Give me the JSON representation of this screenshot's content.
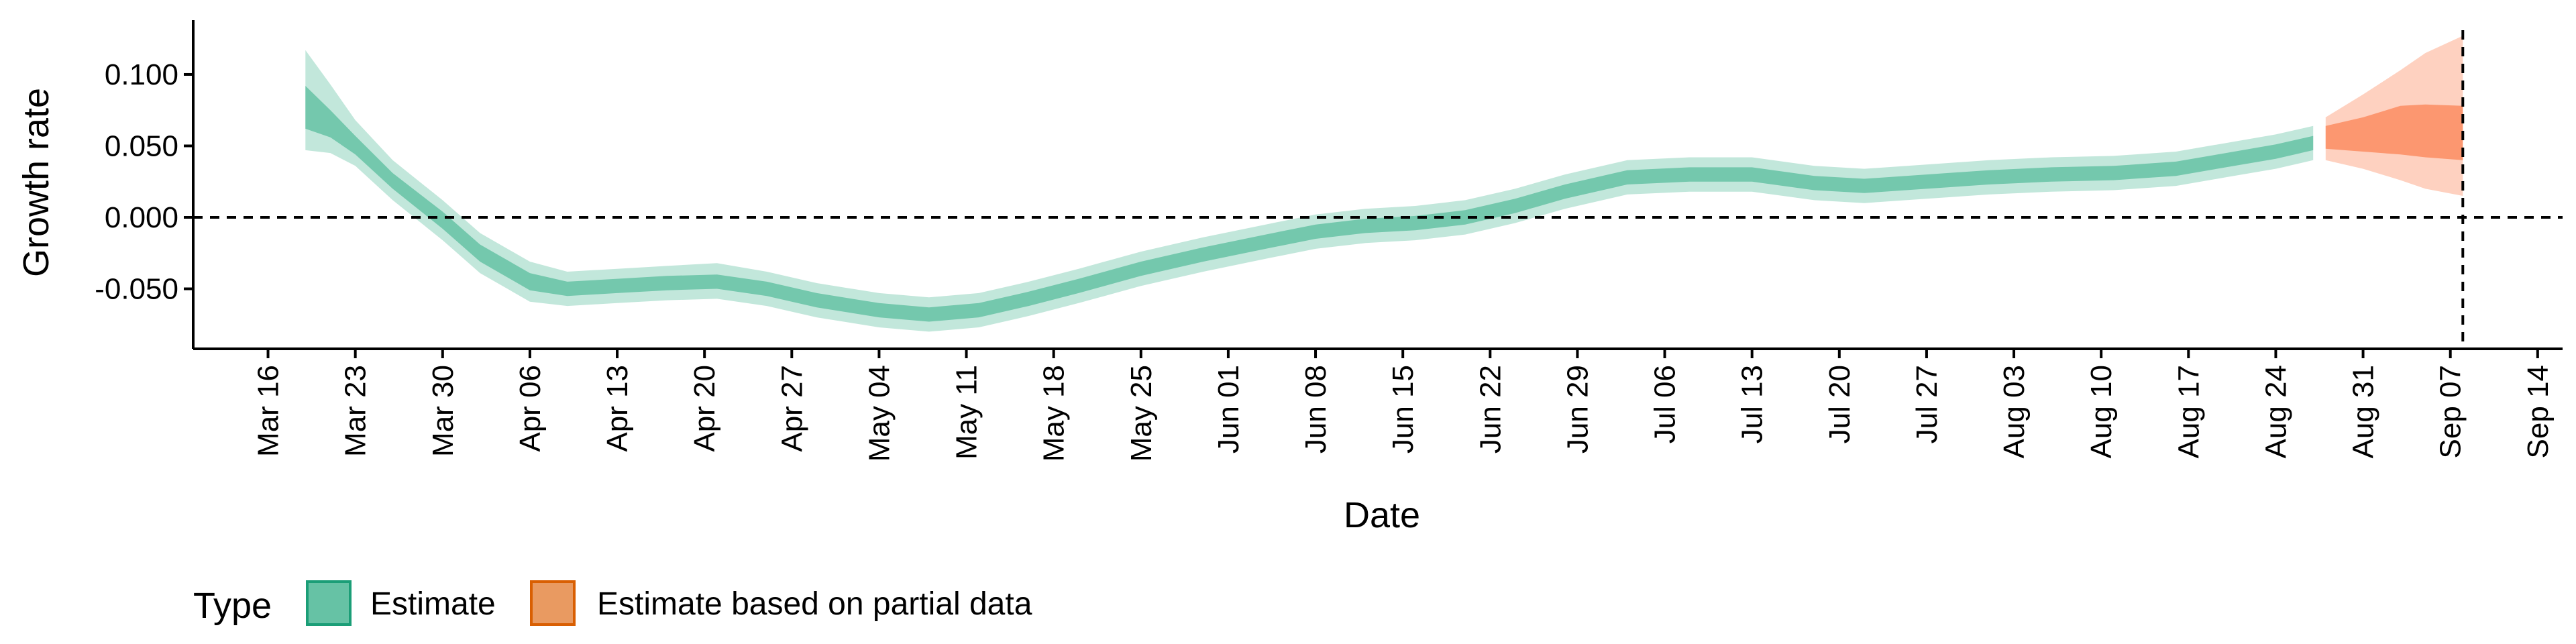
{
  "chart_data": {
    "type": "area",
    "title": "",
    "xlabel": "Date",
    "ylabel": "Growth rate",
    "x_ticks": [
      "Mar 16",
      "Mar 23",
      "Mar 30",
      "Apr 06",
      "Apr 13",
      "Apr 20",
      "Apr 27",
      "May 04",
      "May 11",
      "May 18",
      "May 25",
      "Jun 01",
      "Jun 08",
      "Jun 15",
      "Jun 22",
      "Jun 29",
      "Jul 06",
      "Jul 13",
      "Jul 20",
      "Jul 27",
      "Aug 03",
      "Aug 10",
      "Aug 17",
      "Aug 24",
      "Aug 31",
      "Sep 07",
      "Sep 14"
    ],
    "x_tick_dates": [
      "2020-03-16",
      "2020-03-23",
      "2020-03-30",
      "2020-04-06",
      "2020-04-13",
      "2020-04-20",
      "2020-04-27",
      "2020-05-04",
      "2020-05-11",
      "2020-05-18",
      "2020-05-25",
      "2020-06-01",
      "2020-06-08",
      "2020-06-15",
      "2020-06-22",
      "2020-06-29",
      "2020-07-06",
      "2020-07-13",
      "2020-07-20",
      "2020-07-27",
      "2020-08-03",
      "2020-08-10",
      "2020-08-17",
      "2020-08-24",
      "2020-08-31",
      "2020-09-07",
      "2020-09-14"
    ],
    "xlim": [
      "2020-03-10",
      "2020-09-16"
    ],
    "y_ticks": [
      "-0.050",
      "0.000",
      "0.050",
      "0.100"
    ],
    "y_tick_values": [
      -0.05,
      0.0,
      0.05,
      0.1
    ],
    "ylim": [
      -0.092,
      0.138
    ],
    "reference_lines": {
      "y": 0.0,
      "x_date": "2020-09-08",
      "style": "dashed"
    },
    "grid": false,
    "legend": {
      "title": "Type",
      "position": "bottom-left"
    },
    "series": [
      {
        "name": "Estimate",
        "color": "#66c2a5",
        "points": [
          {
            "date": "2020-03-19",
            "median": 0.075,
            "lower50": 0.062,
            "upper50": 0.092,
            "lower90": 0.047,
            "upper90": 0.117
          },
          {
            "date": "2020-03-21",
            "median": 0.065,
            "lower50": 0.056,
            "upper50": 0.075,
            "lower90": 0.045,
            "upper90": 0.093
          },
          {
            "date": "2020-03-23",
            "median": 0.05,
            "lower50": 0.044,
            "upper50": 0.057,
            "lower90": 0.036,
            "upper90": 0.068
          },
          {
            "date": "2020-03-26",
            "median": 0.025,
            "lower50": 0.02,
            "upper50": 0.031,
            "lower90": 0.012,
            "upper90": 0.04
          },
          {
            "date": "2020-03-30",
            "median": -0.002,
            "lower50": -0.008,
            "upper50": 0.004,
            "lower90": -0.016,
            "upper90": 0.012
          },
          {
            "date": "2020-04-02",
            "median": -0.025,
            "lower50": -0.031,
            "upper50": -0.019,
            "lower90": -0.039,
            "upper90": -0.011
          },
          {
            "date": "2020-04-06",
            "median": -0.045,
            "lower50": -0.051,
            "upper50": -0.039,
            "lower90": -0.059,
            "upper90": -0.031
          },
          {
            "date": "2020-04-09",
            "median": -0.05,
            "lower50": -0.055,
            "upper50": -0.045,
            "lower90": -0.062,
            "upper90": -0.038
          },
          {
            "date": "2020-04-13",
            "median": -0.048,
            "lower50": -0.053,
            "upper50": -0.043,
            "lower90": -0.06,
            "upper90": -0.036
          },
          {
            "date": "2020-04-17",
            "median": -0.046,
            "lower50": -0.051,
            "upper50": -0.041,
            "lower90": -0.058,
            "upper90": -0.034
          },
          {
            "date": "2020-04-21",
            "median": -0.045,
            "lower50": -0.05,
            "upper50": -0.04,
            "lower90": -0.057,
            "upper90": -0.032
          },
          {
            "date": "2020-04-25",
            "median": -0.05,
            "lower50": -0.055,
            "upper50": -0.045,
            "lower90": -0.062,
            "upper90": -0.038
          },
          {
            "date": "2020-04-29",
            "median": -0.058,
            "lower50": -0.063,
            "upper50": -0.053,
            "lower90": -0.07,
            "upper90": -0.046
          },
          {
            "date": "2020-05-04",
            "median": -0.065,
            "lower50": -0.07,
            "upper50": -0.06,
            "lower90": -0.077,
            "upper90": -0.053
          },
          {
            "date": "2020-05-08",
            "median": -0.068,
            "lower50": -0.073,
            "upper50": -0.063,
            "lower90": -0.08,
            "upper90": -0.056
          },
          {
            "date": "2020-05-12",
            "median": -0.065,
            "lower50": -0.07,
            "upper50": -0.06,
            "lower90": -0.077,
            "upper90": -0.053
          },
          {
            "date": "2020-05-16",
            "median": -0.057,
            "lower50": -0.062,
            "upper50": -0.052,
            "lower90": -0.069,
            "upper90": -0.045
          },
          {
            "date": "2020-05-20",
            "median": -0.048,
            "lower50": -0.053,
            "upper50": -0.043,
            "lower90": -0.06,
            "upper90": -0.036
          },
          {
            "date": "2020-05-25",
            "median": -0.036,
            "lower50": -0.041,
            "upper50": -0.031,
            "lower90": -0.048,
            "upper90": -0.024
          },
          {
            "date": "2020-05-30",
            "median": -0.026,
            "lower50": -0.031,
            "upper50": -0.021,
            "lower90": -0.038,
            "upper90": -0.014
          },
          {
            "date": "2020-06-04",
            "median": -0.017,
            "lower50": -0.022,
            "upper50": -0.012,
            "lower90": -0.029,
            "upper90": -0.005
          },
          {
            "date": "2020-06-08",
            "median": -0.01,
            "lower50": -0.015,
            "upper50": -0.005,
            "lower90": -0.022,
            "upper90": 0.002
          },
          {
            "date": "2020-06-12",
            "median": -0.006,
            "lower50": -0.011,
            "upper50": -0.001,
            "lower90": -0.018,
            "upper90": 0.006
          },
          {
            "date": "2020-06-16",
            "median": -0.004,
            "lower50": -0.009,
            "upper50": 0.001,
            "lower90": -0.016,
            "upper90": 0.008
          },
          {
            "date": "2020-06-20",
            "median": 0.0,
            "lower50": -0.005,
            "upper50": 0.005,
            "lower90": -0.012,
            "upper90": 0.012
          },
          {
            "date": "2020-06-24",
            "median": 0.008,
            "lower50": 0.003,
            "upper50": 0.013,
            "lower90": -0.004,
            "upper90": 0.02
          },
          {
            "date": "2020-06-28",
            "median": 0.018,
            "lower50": 0.013,
            "upper50": 0.023,
            "lower90": 0.006,
            "upper90": 0.03
          },
          {
            "date": "2020-07-03",
            "median": 0.028,
            "lower50": 0.023,
            "upper50": 0.033,
            "lower90": 0.016,
            "upper90": 0.04
          },
          {
            "date": "2020-07-08",
            "median": 0.03,
            "lower50": 0.025,
            "upper50": 0.035,
            "lower90": 0.018,
            "upper90": 0.042
          },
          {
            "date": "2020-07-13",
            "median": 0.03,
            "lower50": 0.025,
            "upper50": 0.035,
            "lower90": 0.018,
            "upper90": 0.042
          },
          {
            "date": "2020-07-18",
            "median": 0.024,
            "lower50": 0.019,
            "upper50": 0.029,
            "lower90": 0.012,
            "upper90": 0.036
          },
          {
            "date": "2020-07-22",
            "median": 0.022,
            "lower50": 0.017,
            "upper50": 0.027,
            "lower90": 0.01,
            "upper90": 0.034
          },
          {
            "date": "2020-07-27",
            "median": 0.025,
            "lower50": 0.02,
            "upper50": 0.03,
            "lower90": 0.013,
            "upper90": 0.037
          },
          {
            "date": "2020-08-01",
            "median": 0.028,
            "lower50": 0.023,
            "upper50": 0.033,
            "lower90": 0.016,
            "upper90": 0.04
          },
          {
            "date": "2020-08-06",
            "median": 0.03,
            "lower50": 0.025,
            "upper50": 0.035,
            "lower90": 0.018,
            "upper90": 0.042
          },
          {
            "date": "2020-08-11",
            "median": 0.031,
            "lower50": 0.026,
            "upper50": 0.036,
            "lower90": 0.019,
            "upper90": 0.043
          },
          {
            "date": "2020-08-16",
            "median": 0.034,
            "lower50": 0.029,
            "upper50": 0.039,
            "lower90": 0.022,
            "upper90": 0.046
          },
          {
            "date": "2020-08-20",
            "median": 0.04,
            "lower50": 0.035,
            "upper50": 0.045,
            "lower90": 0.028,
            "upper90": 0.052
          },
          {
            "date": "2020-08-24",
            "median": 0.046,
            "lower50": 0.041,
            "upper50": 0.051,
            "lower90": 0.034,
            "upper90": 0.058
          },
          {
            "date": "2020-08-27",
            "median": 0.052,
            "lower50": 0.047,
            "upper50": 0.057,
            "lower90": 0.04,
            "upper90": 0.064
          }
        ]
      },
      {
        "name": "Estimate based on partial data",
        "color": "#fc8d62",
        "points": [
          {
            "date": "2020-08-28",
            "median": 0.056,
            "lower50": 0.048,
            "upper50": 0.064,
            "lower90": 0.04,
            "upper90": 0.07
          },
          {
            "date": "2020-08-31",
            "median": 0.06,
            "lower50": 0.046,
            "upper50": 0.07,
            "lower90": 0.034,
            "upper90": 0.086
          },
          {
            "date": "2020-09-03",
            "median": 0.062,
            "lower50": 0.044,
            "upper50": 0.078,
            "lower90": 0.026,
            "upper90": 0.103
          },
          {
            "date": "2020-09-05",
            "median": 0.061,
            "lower50": 0.042,
            "upper50": 0.079,
            "lower90": 0.02,
            "upper90": 0.115
          },
          {
            "date": "2020-09-08",
            "median": 0.058,
            "lower50": 0.04,
            "upper50": 0.078,
            "lower90": 0.015,
            "upper90": 0.127
          }
        ]
      }
    ]
  }
}
